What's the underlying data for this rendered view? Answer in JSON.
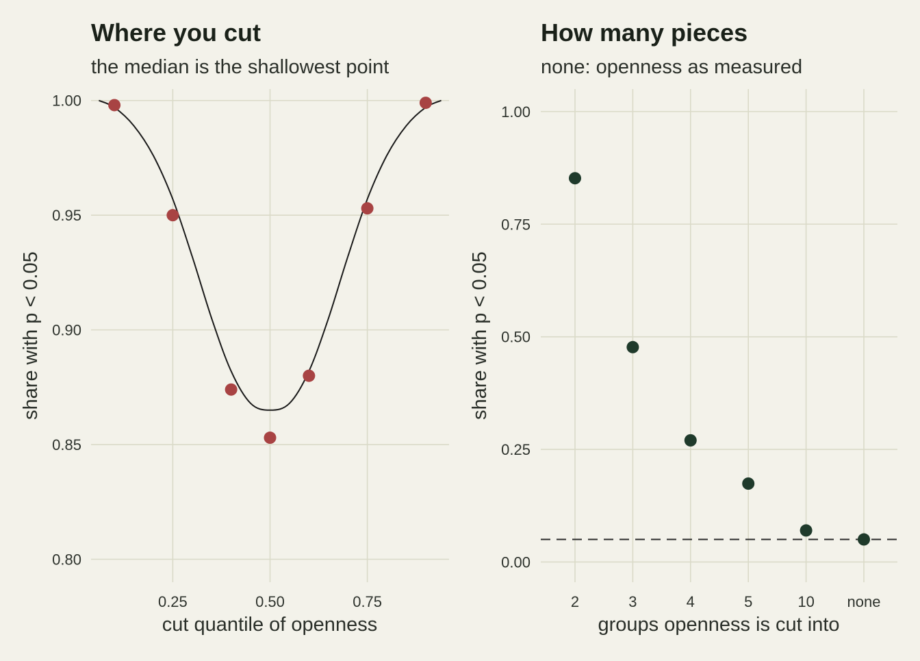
{
  "chart_data": [
    {
      "type": "scatter",
      "title": "Where you cut",
      "subtitle": "the median is the shallowest point",
      "xlabel": "cut quantile of openness",
      "ylabel": "share with p < 0.05",
      "xlim": [
        0.04,
        0.96
      ],
      "ylim": [
        0.79,
        1.005
      ],
      "x_ticks": [
        0.25,
        0.5,
        0.75
      ],
      "x_tick_labels": [
        "0.25",
        "0.50",
        "0.75"
      ],
      "y_ticks": [
        0.8,
        0.85,
        0.9,
        0.95,
        1.0
      ],
      "y_tick_labels": [
        "0.80",
        "0.85",
        "0.90",
        "0.95",
        "1.00"
      ],
      "grid": true,
      "point_color": "#A84343",
      "line_color": "#1A1A1A",
      "points": [
        {
          "x": 0.1,
          "y": 0.998
        },
        {
          "x": 0.25,
          "y": 0.95
        },
        {
          "x": 0.4,
          "y": 0.874
        },
        {
          "x": 0.5,
          "y": 0.853
        },
        {
          "x": 0.6,
          "y": 0.88
        },
        {
          "x": 0.75,
          "y": 0.953
        },
        {
          "x": 0.9,
          "y": 0.999
        }
      ],
      "fit_curve": {
        "x": [
          0.06,
          0.1,
          0.15,
          0.2,
          0.25,
          0.3,
          0.35,
          0.4,
          0.45,
          0.5,
          0.55,
          0.6,
          0.65,
          0.7,
          0.75,
          0.8,
          0.85,
          0.9,
          0.94
        ],
        "y": [
          1.0,
          0.997,
          0.989,
          0.976,
          0.957,
          0.932,
          0.905,
          0.882,
          0.868,
          0.865,
          0.868,
          0.882,
          0.905,
          0.932,
          0.957,
          0.976,
          0.989,
          0.997,
          1.0
        ]
      }
    },
    {
      "type": "scatter",
      "title": "How many pieces",
      "subtitle": "none: openness as measured",
      "xlabel": "groups openness is cut into",
      "ylabel": "share with p < 0.05",
      "categories": [
        "2",
        "3",
        "4",
        "5",
        "10",
        "none"
      ],
      "values": [
        0.852,
        0.477,
        0.27,
        0.174,
        0.07,
        0.05
      ],
      "ylim": [
        -0.045,
        1.05
      ],
      "y_ticks": [
        0,
        0.25,
        0.5,
        0.75,
        1.0
      ],
      "y_tick_labels": [
        "0.00",
        "0.25",
        "0.50",
        "0.75",
        "1.00"
      ],
      "grid": true,
      "point_color": "#1F3A2B",
      "reference_line": {
        "y": 0.05,
        "style": "dashed",
        "color": "#2A2A2A"
      }
    }
  ]
}
